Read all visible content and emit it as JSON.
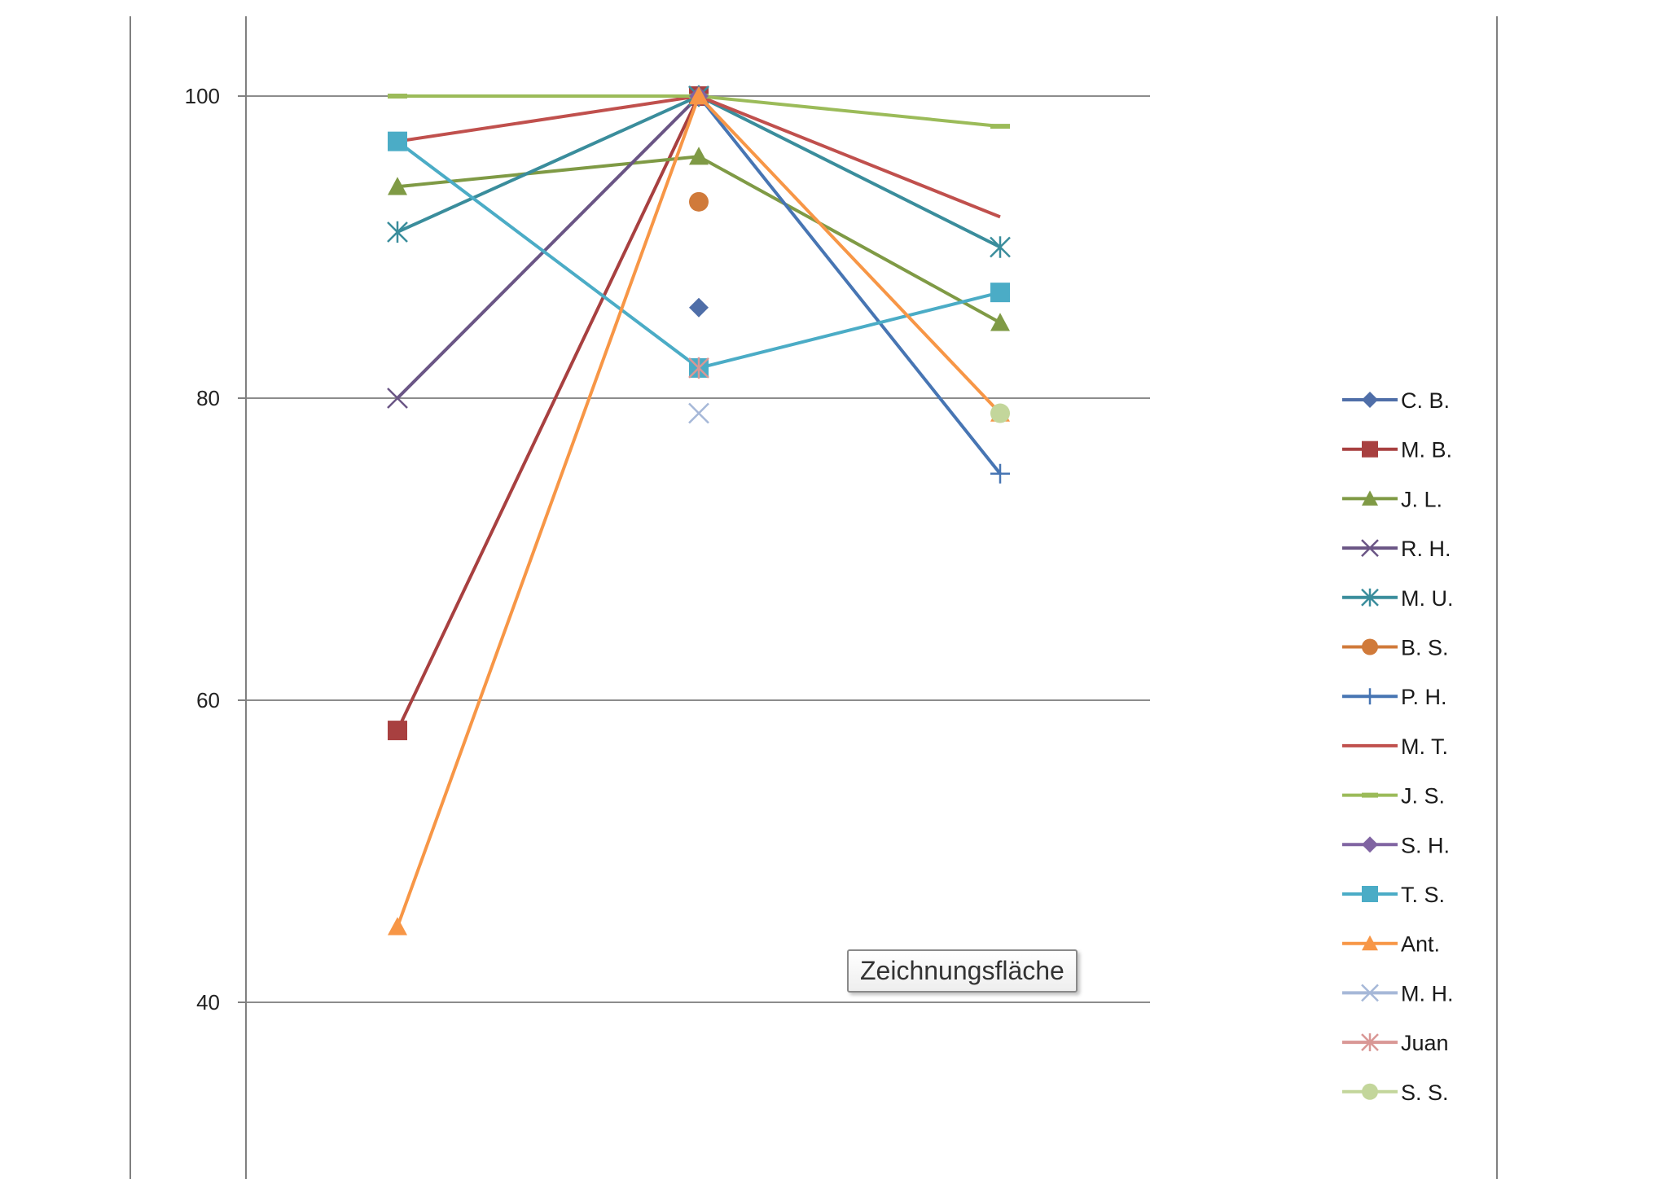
{
  "chart_data": {
    "type": "line",
    "title": "",
    "xlabel": "",
    "ylabel": "",
    "categories": [
      "",
      "",
      ""
    ],
    "ylim": [
      31,
      105
    ],
    "yticks": [
      40,
      60,
      80,
      100
    ],
    "grid": true,
    "legend_position": "right",
    "series": [
      {
        "name": "C. B.",
        "color": "#4f6ea8",
        "marker": "diamond",
        "values": [
          null,
          86,
          null
        ]
      },
      {
        "name": "M. B.",
        "color": "#a84040",
        "marker": "square",
        "values": [
          58,
          100,
          null
        ]
      },
      {
        "name": "J. L.",
        "color": "#7f9a45",
        "marker": "triangle",
        "values": [
          94,
          96,
          85
        ]
      },
      {
        "name": "R. H.",
        "color": "#6a5585",
        "marker": "x",
        "values": [
          80,
          100,
          null
        ]
      },
      {
        "name": "M. U.",
        "color": "#3a8d9c",
        "marker": "star",
        "values": [
          91,
          100,
          90
        ]
      },
      {
        "name": "B. S.",
        "color": "#d07a3a",
        "marker": "circle",
        "values": [
          null,
          93,
          null
        ]
      },
      {
        "name": "P. H.",
        "color": "#4775b3",
        "marker": "plus",
        "values": [
          null,
          100,
          75
        ]
      },
      {
        "name": "M. T.",
        "color": "#c0504d",
        "marker": "none",
        "values": [
          97,
          100,
          92
        ]
      },
      {
        "name": "J. S.",
        "color": "#9bbb59",
        "marker": "dash",
        "values": [
          100,
          100,
          98
        ]
      },
      {
        "name": "S. H.",
        "color": "#8064a2",
        "marker": "diamond",
        "values": [
          null,
          100,
          null
        ]
      },
      {
        "name": "T. S.",
        "color": "#4bacc6",
        "marker": "square",
        "values": [
          97,
          82,
          87
        ]
      },
      {
        "name": "Ant.",
        "color": "#f79646",
        "marker": "triangle",
        "values": [
          45,
          100,
          79
        ]
      },
      {
        "name": "M. H.",
        "color": "#a6b8d8",
        "marker": "x",
        "values": [
          null,
          79,
          null
        ]
      },
      {
        "name": "Juan",
        "color": "#d99795",
        "marker": "star",
        "values": [
          null,
          82,
          null
        ]
      },
      {
        "name": "S. S.",
        "color": "#c3d69b",
        "marker": "circle",
        "values": [
          null,
          null,
          79
        ]
      }
    ]
  },
  "tooltip": {
    "text": "Zeichnungsfläche"
  }
}
